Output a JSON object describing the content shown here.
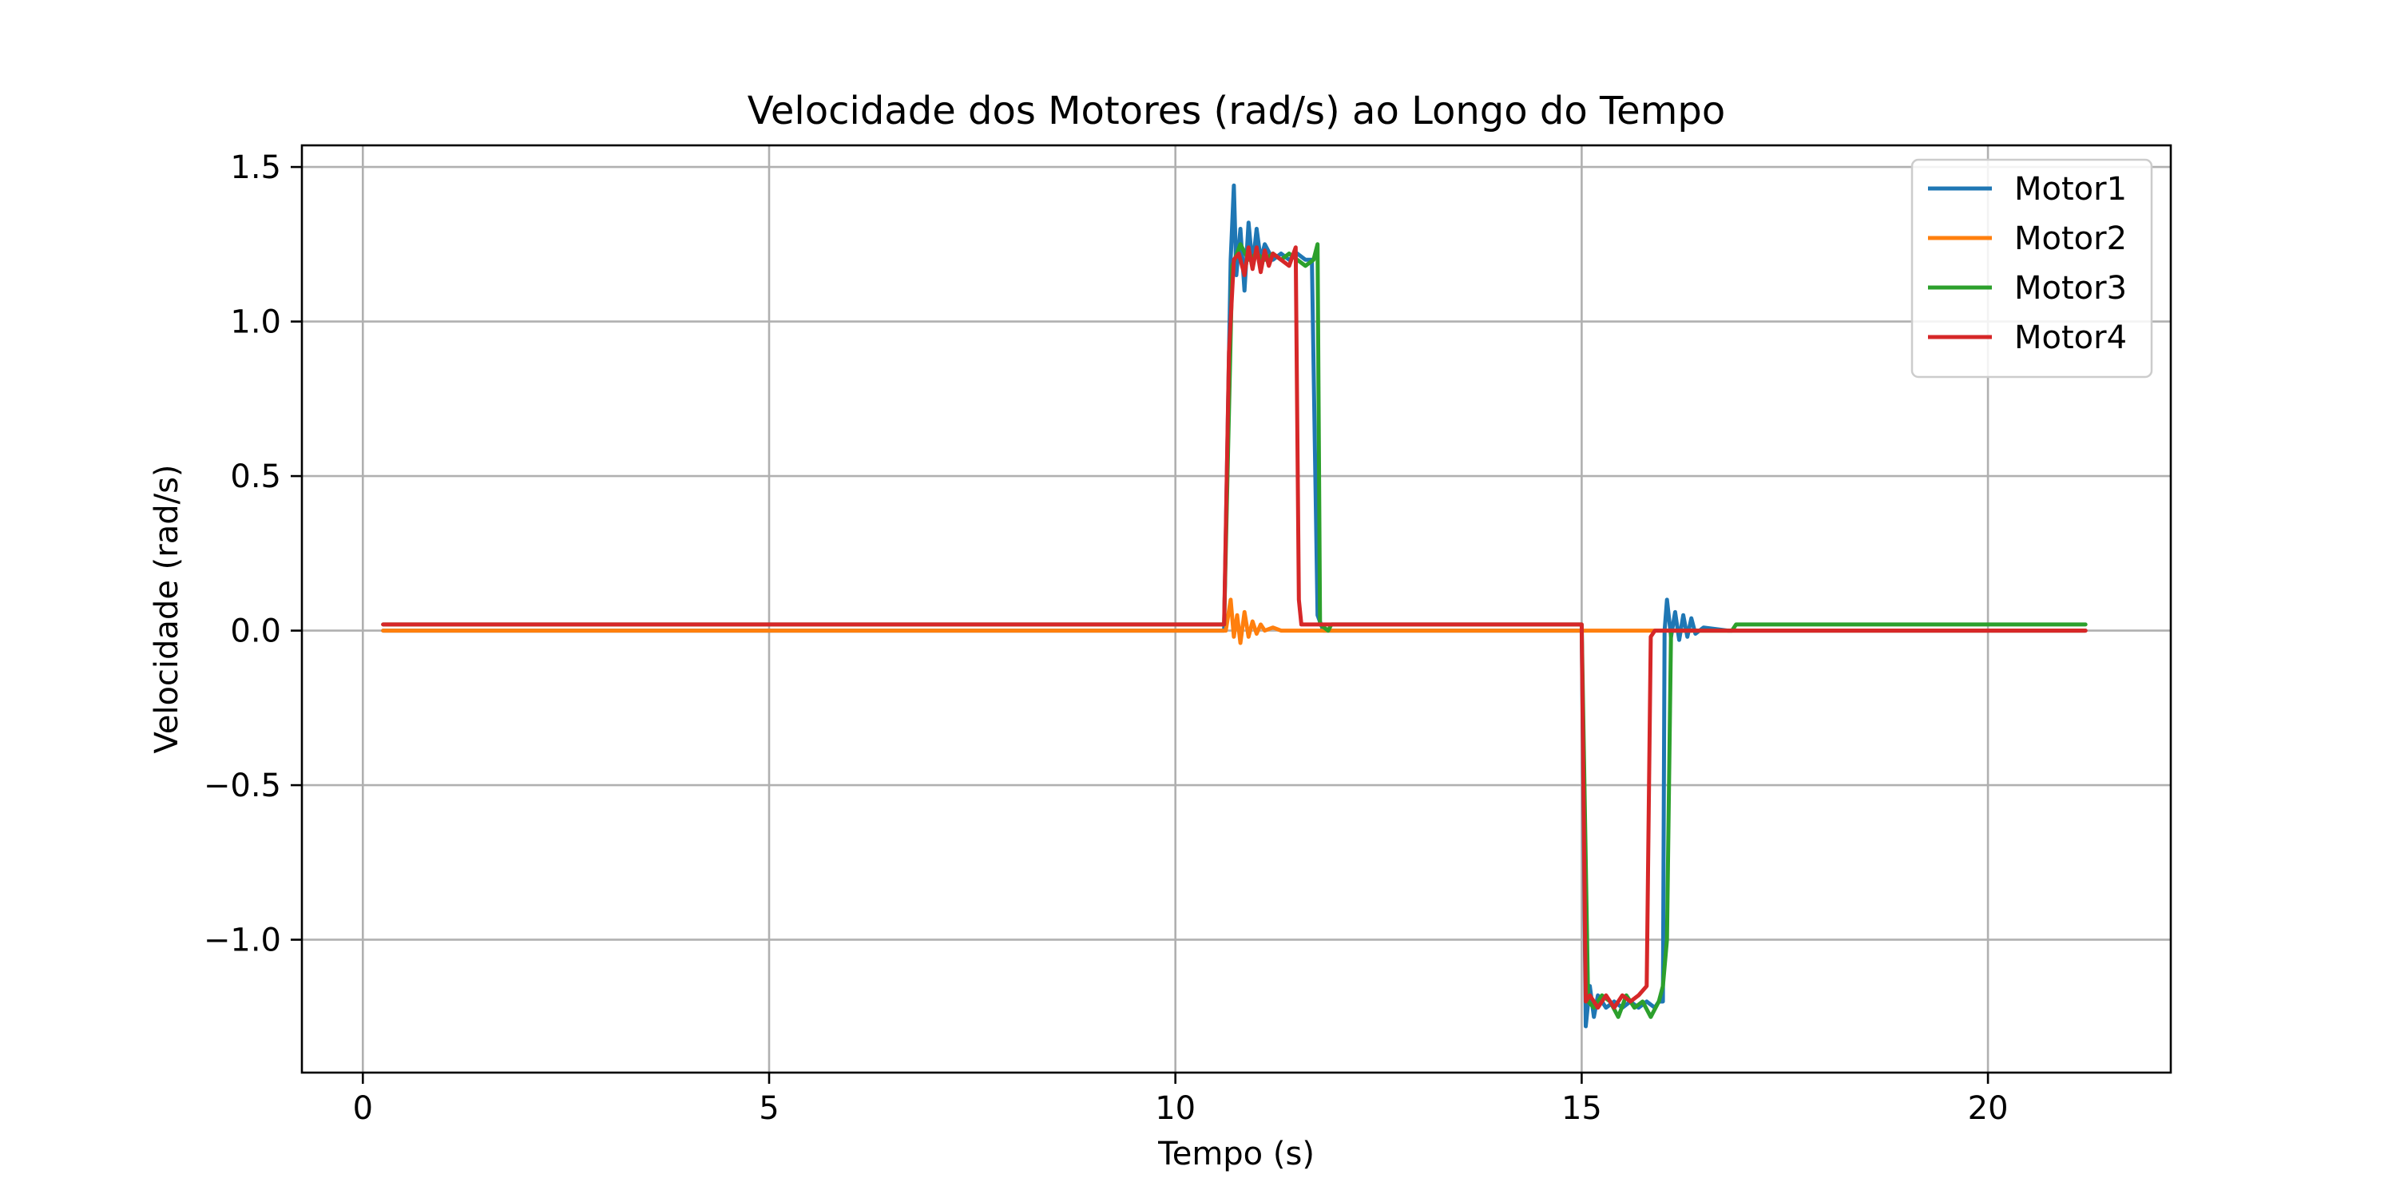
{
  "chart_data": {
    "type": "line",
    "title": "Velocidade dos Motores (rad/s) ao Longo do Tempo",
    "xlabel": "Tempo (s)",
    "ylabel": "Velocidade (rad/s)",
    "xlim": [
      -0.75,
      22.25
    ],
    "ylim": [
      -1.43,
      1.57
    ],
    "xticks": [
      0,
      5,
      10,
      15,
      20
    ],
    "xtick_labels": [
      "0",
      "5",
      "10",
      "15",
      "20"
    ],
    "yticks": [
      -1.0,
      -0.5,
      0.0,
      0.5,
      1.0,
      1.5
    ],
    "ytick_labels": [
      "−1.0",
      "−0.5",
      "0.0",
      "0.5",
      "1.0",
      "1.5"
    ],
    "grid": true,
    "legend_position": "top-right",
    "series": [
      {
        "name": "Motor1",
        "color": "#1f77b4",
        "x": [
          0.25,
          10.6,
          10.68,
          10.72,
          10.75,
          10.8,
          10.85,
          10.9,
          10.95,
          11.0,
          11.05,
          11.1,
          11.2,
          11.3,
          11.4,
          11.5,
          11.6,
          11.68,
          11.75,
          11.82,
          15.0,
          15.05,
          15.1,
          15.15,
          15.2,
          15.3,
          15.4,
          15.5,
          15.6,
          15.7,
          15.8,
          15.9,
          15.95,
          16.0,
          16.02,
          16.05,
          16.1,
          16.15,
          16.2,
          16.25,
          16.3,
          16.35,
          16.4,
          16.5,
          16.8,
          21.2
        ],
        "y": [
          0.0,
          0.0,
          1.2,
          1.44,
          1.15,
          1.3,
          1.1,
          1.32,
          1.18,
          1.3,
          1.2,
          1.25,
          1.2,
          1.22,
          1.2,
          1.22,
          1.2,
          1.2,
          0.05,
          0.0,
          0.0,
          -1.28,
          -1.15,
          -1.25,
          -1.18,
          -1.22,
          -1.2,
          -1.22,
          -1.2,
          -1.22,
          -1.2,
          -1.22,
          -1.2,
          -1.2,
          0.0,
          0.1,
          -0.02,
          0.06,
          -0.03,
          0.05,
          -0.02,
          0.04,
          -0.01,
          0.01,
          0.0,
          0.0
        ]
      },
      {
        "name": "Motor2",
        "color": "#ff7f0e",
        "x": [
          0.25,
          10.62,
          10.68,
          10.72,
          10.76,
          10.8,
          10.85,
          10.9,
          10.95,
          11.0,
          11.05,
          11.1,
          11.2,
          11.3,
          11.4,
          12.0,
          15.0,
          15.85,
          21.2
        ],
        "y": [
          0.0,
          0.0,
          0.1,
          -0.02,
          0.05,
          -0.04,
          0.06,
          -0.02,
          0.03,
          -0.01,
          0.02,
          0.0,
          0.01,
          0.0,
          0.0,
          0.0,
          0.0,
          0.0,
          0.0
        ]
      },
      {
        "name": "Motor3",
        "color": "#2ca02c",
        "x": [
          0.25,
          10.6,
          10.7,
          10.8,
          10.9,
          11.0,
          11.1,
          11.2,
          11.3,
          11.4,
          11.5,
          11.6,
          11.7,
          11.75,
          11.78,
          11.88,
          11.92,
          15.0,
          15.08,
          15.15,
          15.25,
          15.35,
          15.45,
          15.55,
          15.65,
          15.75,
          15.85,
          15.95,
          16.0,
          16.05,
          16.1,
          16.2,
          16.85,
          16.9,
          21.2
        ],
        "y": [
          0.02,
          0.02,
          1.18,
          1.25,
          1.2,
          1.22,
          1.2,
          1.22,
          1.2,
          1.22,
          1.2,
          1.18,
          1.2,
          1.25,
          0.02,
          0.0,
          0.02,
          0.02,
          -1.2,
          -1.22,
          -1.18,
          -1.2,
          -1.25,
          -1.18,
          -1.22,
          -1.2,
          -1.25,
          -1.2,
          -1.15,
          -1.0,
          0.0,
          0.0,
          0.0,
          0.02,
          0.02
        ]
      },
      {
        "name": "Motor4",
        "color": "#d62728",
        "x": [
          0.25,
          10.6,
          10.66,
          10.72,
          10.78,
          10.85,
          10.9,
          10.95,
          11.0,
          11.05,
          11.1,
          11.15,
          11.2,
          11.3,
          11.4,
          11.48,
          11.52,
          11.55,
          15.0,
          15.05,
          15.1,
          15.2,
          15.3,
          15.4,
          15.5,
          15.6,
          15.7,
          15.8,
          15.85,
          15.9,
          16.0,
          21.2
        ],
        "y": [
          0.02,
          0.02,
          0.9,
          1.2,
          1.22,
          1.15,
          1.24,
          1.17,
          1.24,
          1.16,
          1.23,
          1.18,
          1.22,
          1.2,
          1.18,
          1.24,
          0.1,
          0.02,
          0.02,
          -1.2,
          -1.18,
          -1.22,
          -1.18,
          -1.22,
          -1.18,
          -1.2,
          -1.18,
          -1.15,
          -0.02,
          0.0,
          0.0,
          0.0
        ]
      }
    ]
  }
}
